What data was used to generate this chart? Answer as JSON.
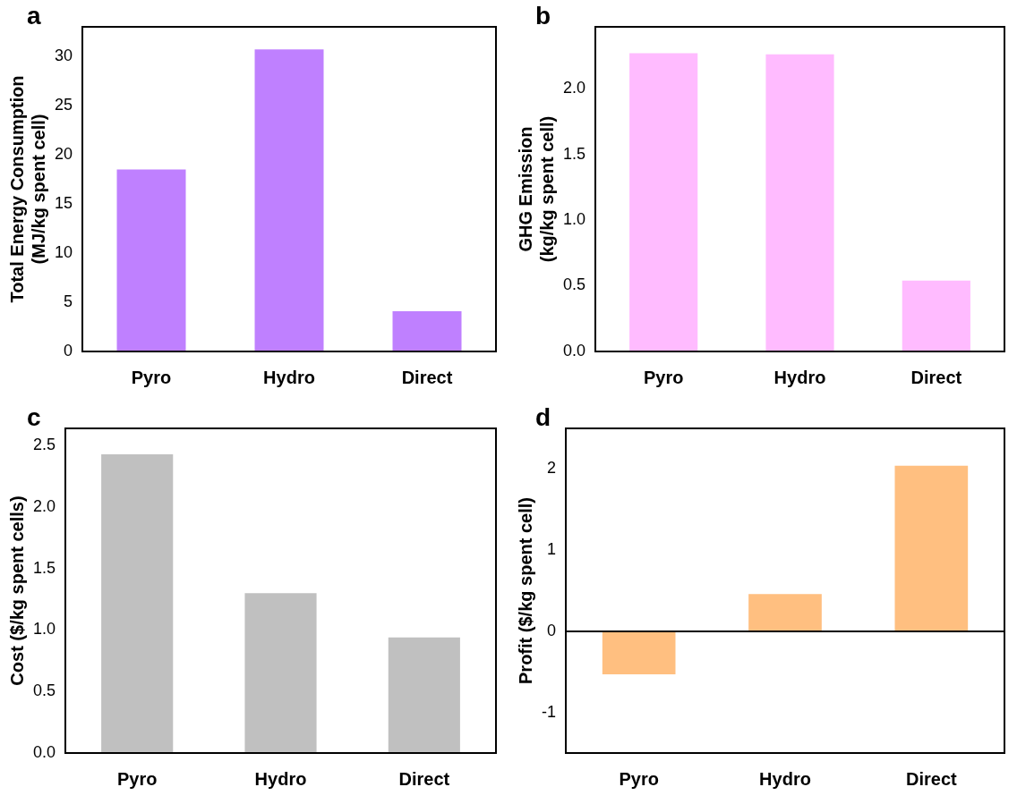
{
  "chart_data": [
    {
      "type": "bar",
      "title": "a",
      "ylabel": "Total Energy Consumption\n(MJ/kg spent cell)",
      "categories": [
        "Pyro",
        "Hydro",
        "Direct"
      ],
      "values": [
        18.5,
        30.7,
        4.1
      ],
      "color": "#bf80ff",
      "ylim": [
        0,
        33
      ],
      "yticks": [
        0,
        5,
        10,
        15,
        20,
        25,
        30
      ],
      "grid": false,
      "legend": false
    },
    {
      "type": "bar",
      "title": "b",
      "ylabel": "GHG Emission\n(kg/kg spent cell)",
      "categories": [
        "Pyro",
        "Hydro",
        "Direct"
      ],
      "values": [
        2.27,
        2.26,
        0.54
      ],
      "color": "#ffbbff",
      "ylim": [
        0,
        2.47
      ],
      "yticks": [
        {
          "value": 0,
          "label": "0.0"
        },
        {
          "value": 0.5,
          "label": "0.5"
        },
        {
          "value": 1,
          "label": "1.0"
        },
        {
          "value": 1.5,
          "label": "1.5"
        },
        {
          "value": 2,
          "label": "2.0"
        }
      ],
      "grid": false,
      "legend": false
    },
    {
      "type": "bar",
      "title": "c",
      "ylabel": "Cost ($/kg spent cells)",
      "categories": [
        "Pyro",
        "Hydro",
        "Direct"
      ],
      "values": [
        2.43,
        1.3,
        0.94
      ],
      "color": "#c0c0c0",
      "ylim": [
        0,
        2.64
      ],
      "yticks": [
        {
          "value": 0,
          "label": "0.0"
        },
        {
          "value": 0.5,
          "label": "0.5"
        },
        {
          "value": 1,
          "label": "1.0"
        },
        {
          "value": 1.5,
          "label": "1.5"
        },
        {
          "value": 2,
          "label": "2.0"
        },
        {
          "value": 2.5,
          "label": "2.5"
        }
      ],
      "grid": false,
      "legend": false
    },
    {
      "type": "bar",
      "title": "d",
      "ylabel": "Profit ($/kg spent cell)",
      "categories": [
        "Pyro",
        "Hydro",
        "Direct"
      ],
      "values": [
        -0.53,
        0.46,
        2.04
      ],
      "color": "#ffbf80",
      "ylim": [
        -1.5,
        2.5
      ],
      "yticks": [
        -1,
        0,
        1,
        2
      ],
      "ref_lines": [
        {
          "axis": "y",
          "value": 0,
          "color": "#000000"
        }
      ],
      "grid": false,
      "legend": false
    }
  ]
}
